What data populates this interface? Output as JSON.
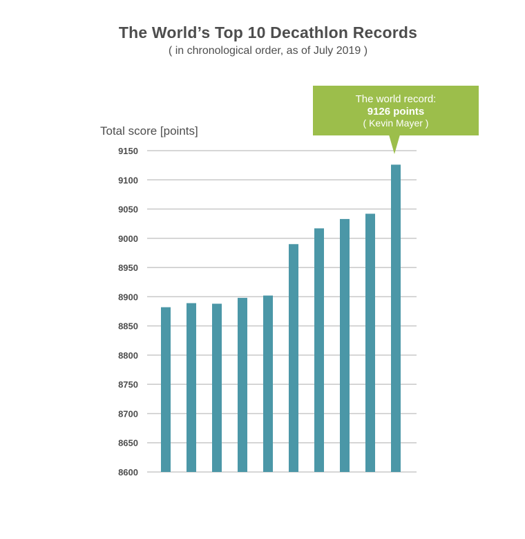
{
  "title": "The World’s Top 10 Decathlon Records",
  "subtitle": "( in chronological order, as of July 2019 )",
  "callout": {
    "line1": "The world record:",
    "line2": "9126 points",
    "line3": "( Kevin Mayer )"
  },
  "colors": {
    "bar": "#4b97a7",
    "grid": "#c8c8c8",
    "callout": "#9cbe4b",
    "text": "#4d4d4d"
  },
  "chart_data": {
    "type": "bar",
    "title": "The World’s Top 10 Decathlon Records",
    "subtitle": "( in chronological order, as of July 2019 )",
    "ylabel": "Total score [points]",
    "xlabel": "",
    "categories": [
      "",
      "",
      "",
      "",
      "",
      "",
      "",
      "",
      "",
      ""
    ],
    "values": [
      8882,
      8889,
      8888,
      8898,
      8902,
      8990,
      9017,
      9033,
      9042,
      9126
    ],
    "ylim": [
      8600,
      9150
    ],
    "yticks": [
      8600,
      8650,
      8700,
      8750,
      8800,
      8850,
      8900,
      8950,
      9000,
      9050,
      9100,
      9150
    ],
    "grid": true,
    "annotation": "The world record: 9126 points ( Kevin Mayer )"
  }
}
